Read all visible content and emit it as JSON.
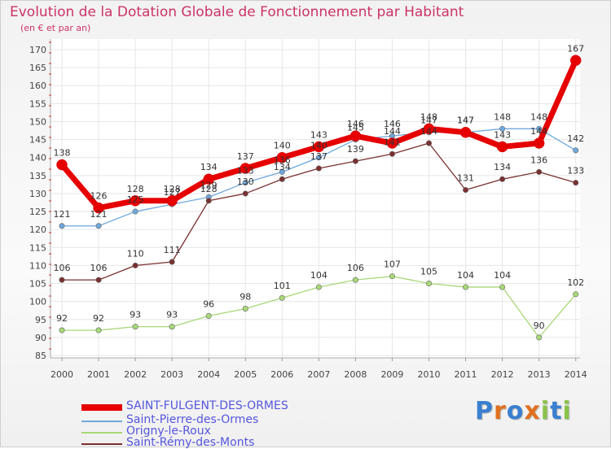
{
  "title": "Evolution de la Dotation Globale de Fonctionnement par Habitant",
  "subtitle": "(en € et par an)",
  "logo": {
    "text": "Proxiti",
    "letters": [
      {
        "ch": "P",
        "color": "#3a7fd0"
      },
      {
        "ch": "r",
        "color": "#e07020"
      },
      {
        "ch": "o",
        "color": "#3a7fd0"
      },
      {
        "ch": "x",
        "color": "#e07020"
      },
      {
        "ch": "i",
        "color": "#8bc34a"
      },
      {
        "ch": "t",
        "color": "#3a7fd0"
      },
      {
        "ch": "i",
        "color": "#8bc34a"
      }
    ]
  },
  "chart_data": {
    "type": "line",
    "title": "Evolution de la Dotation Globale de Fonctionnement par Habitant",
    "subtitle": "(en € et par an)",
    "xlabel": "",
    "ylabel": "",
    "ylim": [
      85,
      170
    ],
    "yticks": [
      85,
      90,
      95,
      100,
      105,
      110,
      115,
      120,
      125,
      130,
      135,
      140,
      145,
      150,
      155,
      160,
      165,
      170
    ],
    "grid": true,
    "legend_position": "bottom-left",
    "categories": [
      "2000",
      "2001",
      "2002",
      "2003",
      "2004",
      "2005",
      "2006",
      "2007",
      "2008",
      "2009",
      "2010",
      "2011",
      "2012",
      "2013",
      "2014"
    ],
    "series": [
      {
        "name": "SAINT-FULGENT-DES-ORMES",
        "color": "#e60000",
        "values": [
          138,
          126,
          128,
          128,
          134,
          137,
          140,
          143,
          146,
          144,
          148,
          147,
          143,
          144,
          167
        ]
      },
      {
        "name": "Saint-Pierre-des-Ormes",
        "color": "#6fa8dc",
        "values": [
          121,
          121,
          125,
          127,
          129,
          133,
          136,
          140,
          145,
          146,
          147,
          147,
          148,
          148,
          142
        ]
      },
      {
        "name": "Origny-le-Roux",
        "color": "#a8d878",
        "values": [
          92,
          92,
          93,
          93,
          96,
          98,
          101,
          104,
          106,
          107,
          105,
          104,
          104,
          90,
          102
        ]
      },
      {
        "name": "Saint-Rémy-des-Monts",
        "color": "#7a3030",
        "values": [
          106,
          106,
          110,
          111,
          128,
          130,
          134,
          137,
          139,
          141,
          144,
          131,
          134,
          136,
          133
        ]
      }
    ]
  }
}
